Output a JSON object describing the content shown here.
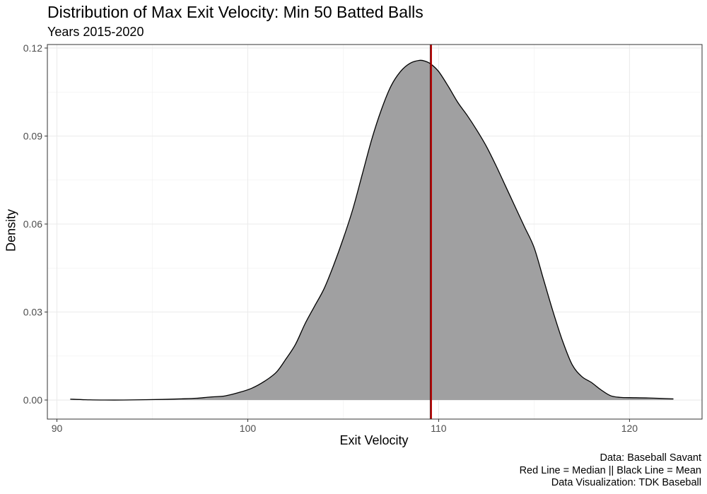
{
  "chart_data": {
    "type": "area",
    "title": "Distribution of Max Exit Velocity: Min 50 Batted Balls",
    "subtitle": "Years 2015-2020",
    "xlabel": "Exit Velocity",
    "ylabel": "Density",
    "xlim": [
      89.5,
      123.8
    ],
    "ylim": [
      -0.0065,
      0.1212
    ],
    "x_ticks": [
      90,
      100,
      110,
      120
    ],
    "y_ticks": [
      0.0,
      0.03,
      0.06,
      0.09,
      0.12
    ],
    "x_tick_labels": [
      "90",
      "100",
      "110",
      "120"
    ],
    "y_tick_labels": [
      "0.00",
      "0.03",
      "0.06",
      "0.09",
      "0.12"
    ],
    "grid": true,
    "fill_color": "#a0a0a1",
    "line_color": "#000000",
    "series": [
      {
        "x": [
          90.7,
          91.5,
          92.5,
          93.5,
          94.5,
          95.5,
          96.5,
          97.3,
          98.0,
          98.8,
          99.5,
          100.2,
          100.9,
          101.5,
          102.0,
          102.5,
          103.0,
          103.5,
          104.0,
          104.5,
          105.0,
          105.5,
          106.0,
          106.5,
          107.0,
          107.5,
          108.0,
          108.5,
          109.0,
          109.3,
          109.6,
          110.0,
          110.5,
          111.0,
          111.5,
          112.0,
          112.5,
          113.0,
          113.5,
          114.0,
          114.5,
          115.0,
          115.5,
          116.0,
          116.5,
          117.0,
          117.5,
          118.0,
          118.5,
          119.0,
          119.5,
          120.0,
          121.0,
          122.3
        ],
        "y": [
          0.0003,
          0.0001,
          0.0,
          0.0,
          0.0001,
          0.0002,
          0.0004,
          0.0006,
          0.001,
          0.0014,
          0.0025,
          0.004,
          0.0065,
          0.0095,
          0.014,
          0.019,
          0.026,
          0.032,
          0.038,
          0.046,
          0.055,
          0.065,
          0.077,
          0.089,
          0.099,
          0.107,
          0.112,
          0.1148,
          0.1158,
          0.1155,
          0.1145,
          0.112,
          0.107,
          0.1015,
          0.097,
          0.092,
          0.0865,
          0.08,
          0.073,
          0.066,
          0.059,
          0.052,
          0.041,
          0.03,
          0.02,
          0.012,
          0.008,
          0.006,
          0.0035,
          0.0015,
          0.0009,
          0.0008,
          0.0007,
          0.0004
        ]
      }
    ],
    "reference_lines": [
      {
        "orientation": "vertical",
        "x": 109.6,
        "color": "#b30000"
      },
      {
        "orientation": "vertical",
        "x": 109.55,
        "color": "#000000"
      }
    ]
  },
  "caption": {
    "line1": "Data: Baseball Savant",
    "line2": "Red Line = Median || Black Line = Mean",
    "line3": "Data Visualization: TDK Baseball"
  }
}
